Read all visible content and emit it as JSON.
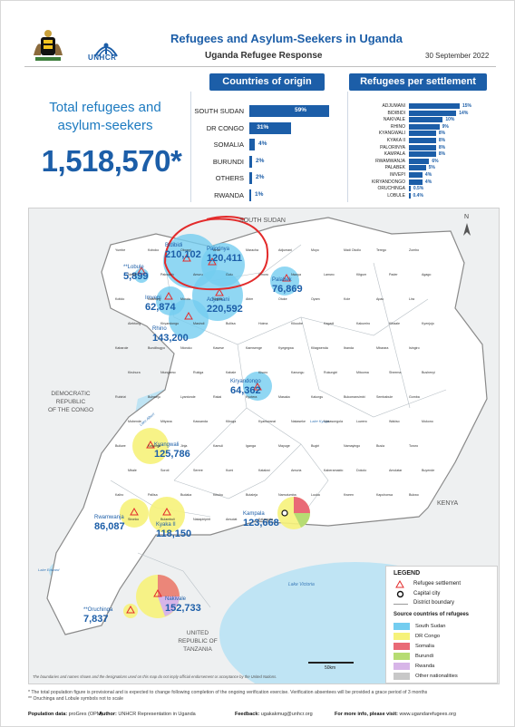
{
  "header": {
    "title": "Refugees and Asylum-Seekers in Uganda",
    "subtitle": "Uganda Refugee Response",
    "date": "30 September 2022",
    "unhcr_word": "UNHCR"
  },
  "total": {
    "label_line1": "Total refugees and",
    "label_line2": "asylum-seekers",
    "value": "1,518,570*"
  },
  "origin": {
    "title": "Countries of origin",
    "items": [
      {
        "name": "SOUTH SUDAN",
        "pct": "59%",
        "value": 59
      },
      {
        "name": "DR CONGO",
        "pct": "31%",
        "value": 31
      },
      {
        "name": "SOMALIA",
        "pct": "4%",
        "value": 4
      },
      {
        "name": "BURUNDI",
        "pct": "2%",
        "value": 2
      },
      {
        "name": "OTHERS",
        "pct": "2%",
        "value": 2
      },
      {
        "name": "RWANDA",
        "pct": "1%",
        "value": 1
      }
    ]
  },
  "settlements_chart": {
    "title": "Refugees per settlement",
    "items": [
      {
        "name": "ADJUMANI",
        "pct": "15%",
        "value": 15
      },
      {
        "name": "BIDIBIDI",
        "pct": "14%",
        "value": 14
      },
      {
        "name": "NAKIVALE",
        "pct": "10%",
        "value": 10
      },
      {
        "name": "RHINO",
        "pct": "9%",
        "value": 9
      },
      {
        "name": "KYANGWALI",
        "pct": "8%",
        "value": 8
      },
      {
        "name": "KYAKA II",
        "pct": "8%",
        "value": 8
      },
      {
        "name": "PALORINYA",
        "pct": "8%",
        "value": 8
      },
      {
        "name": "KAMPALA",
        "pct": "8%",
        "value": 8
      },
      {
        "name": "RWAMWANJA",
        "pct": "6%",
        "value": 6
      },
      {
        "name": "PALABEK",
        "pct": "5%",
        "value": 5
      },
      {
        "name": "IMVEPI",
        "pct": "4%",
        "value": 4
      },
      {
        "name": "KIRYANDONGO",
        "pct": "4%",
        "value": 4
      },
      {
        "name": "ORUCHINGA",
        "pct": "0.5%",
        "value": 0.5
      },
      {
        "name": "LOBULE",
        "pct": "0.4%",
        "value": 0.4
      }
    ]
  },
  "map": {
    "countries": {
      "south_sudan": "SOUTH SUDAN",
      "drc_1": "DEMOCRATIC",
      "drc_2": "REPUBLIC",
      "drc_3": "OF THE  CONGO",
      "kenya": "KENYA",
      "tanzania_1": "UNITED",
      "tanzania_2": "REPUBLIC OF",
      "tanzania_3": "TANZANIA",
      "lake_victoria": "Lake Victoria",
      "lake_albert": "Lake Albert",
      "lake_kyoga": "Lake Kyoga",
      "lake_edward": "Lake Edward"
    },
    "north_arrow": "N",
    "scale": "50km",
    "settlements": [
      {
        "name": "Bidibidi",
        "value": "210,102",
        "color": "#74cdf0",
        "size": 28
      },
      {
        "name": "Palorinya",
        "value": "120,411",
        "color": "#74cdf0",
        "size": 22
      },
      {
        "name": "**Lobule",
        "value": "5,899",
        "color": "#74cdf0",
        "size": 8
      },
      {
        "name": "Imvepi",
        "value": "62,874",
        "color": "#74cdf0",
        "size": 16
      },
      {
        "name": "Adjumani",
        "value": "220,592",
        "color": "#74cdf0",
        "size": 28
      },
      {
        "name": "Rhino",
        "value": "143,200",
        "color": "#74cdf0",
        "size": 22
      },
      {
        "name": "Palabek",
        "value": "76,869",
        "color": "#74cdf0",
        "size": 16
      },
      {
        "name": "Kiryandongo",
        "value": "64,362",
        "color": "#74cdf0",
        "size": 16
      },
      {
        "name": "Kyangwali",
        "value": "125,786",
        "color": "#f6f27a",
        "size": 20
      },
      {
        "name": "Rwamwanja",
        "value": "86,087",
        "color": "#f6f27a",
        "size": 16
      },
      {
        "name": "Kyaka II",
        "value": "118,150",
        "color": "#f6f27a",
        "size": 20
      },
      {
        "name": "Kampala",
        "value": "123,668",
        "color": "#f6f27a",
        "size": 18
      },
      {
        "name": "Nakivale",
        "value": "152,733",
        "color": "#f6f27a",
        "size": 24
      },
      {
        "name": "**Oruchinga",
        "value": "7,837",
        "color": "#f6f27a",
        "size": 8
      }
    ],
    "districts": [
      "Yumbe",
      "Koboko",
      "Obongi",
      "Arua",
      "Maracha",
      "Adjumani",
      "Moyo",
      "Madi Okollo",
      "Terego",
      "Zombo",
      "Nebbi",
      "Pakwach",
      "Amuru",
      "Gulu",
      "Omoro",
      "Nwoya",
      "Lamwo",
      "Kitgum",
      "Pader",
      "Agago",
      "Kotido",
      "Kaabong",
      "Moroto",
      "Napak",
      "Abim",
      "Otuke",
      "Oyam",
      "Kole",
      "Apac",
      "Lira",
      "Alebtong",
      "Kiryandongo",
      "Masindi",
      "Buliisa",
      "Hoima",
      "Kikuube",
      "Kagadi",
      "Kakumiro",
      "Kibaale",
      "Kyenjojo",
      "Kabarole",
      "Bundibugyo",
      "Ntoroko",
      "Kasese",
      "Kamwenge",
      "Kyegegwa",
      "Kitagwenda",
      "Ibanda",
      "Mbarara",
      "Isingiro",
      "Kiruhura",
      "Ntungamo",
      "Rukiga",
      "Kabale",
      "Kisoro",
      "Kanungu",
      "Rukungiri",
      "Mitooma",
      "Sheema",
      "Bushenyi",
      "Rubirizi",
      "Buhweju",
      "Lyantonde",
      "Rakai",
      "Kyotera",
      "Masaka",
      "Kalungu",
      "Bukomansimbi",
      "Sembabule",
      "Gomba",
      "Mubende",
      "Mityana",
      "Kassanda",
      "Kiboga",
      "Kyankwanzi",
      "Nakaseke",
      "Nakasongola",
      "Luwero",
      "Wakiso",
      "Mukono",
      "Buikwe",
      "Kayunga",
      "Jinja",
      "Kamuli",
      "Iganga",
      "Mayuge",
      "Bugiri",
      "Namayingo",
      "Busia",
      "Tororo",
      "Mbale",
      "Soroti",
      "Serere",
      "Kumi",
      "Katakwi",
      "Amuria",
      "Kaberamaido",
      "Dokolo",
      "Amolatar",
      "Buyende",
      "Kaliro",
      "Pallisa",
      "Budaka",
      "Kibuku",
      "Butaleja",
      "Namutumba",
      "Luuka",
      "Kween",
      "Kapchorwa",
      "Bukwo",
      "Sironko",
      "Bulambuli",
      "Nakapiripirit",
      "Amudat",
      "Kalangala"
    ],
    "legend": {
      "title": "LEGEND",
      "refugee_settlement": "Refugee settlement",
      "capital_city": "Capital city",
      "district_boundary": "District boundary",
      "source_title": "Source countries of refugees",
      "sources": [
        {
          "name": "South Sudan",
          "color": "#74cdf0"
        },
        {
          "name": "DR Congo",
          "color": "#f6f27a"
        },
        {
          "name": "Somalia",
          "color": "#e96a76"
        },
        {
          "name": "Burundi",
          "color": "#b6dc73"
        },
        {
          "name": "Rwanda",
          "color": "#d7b5e8"
        },
        {
          "name": "Other nationalities",
          "color": "#c8c8c8"
        }
      ]
    },
    "disclaimer": "The boundaries and names shown and the designations used on this map do not imply official endorsement or acceptance by the United Nations."
  },
  "footnotes": {
    "note1": "* The total population figure is provisional and is expected to change following completion of the ongoing verification exercise. Verification absentees will be provided a grace period of 3 months",
    "note2": "** Oruchinga and Lobule symbols not to scale",
    "population_label": "Population data:",
    "population_value": "proGres (OPM)",
    "author_label": "Author:",
    "author_value": "UNHCR Representation in Uganda",
    "feedback_label": "Feedback:",
    "feedback_value": "ugakakmug@unhcr.org",
    "more_label": "For more info, please visit:",
    "more_value": "www.ugandarefugees.org"
  }
}
